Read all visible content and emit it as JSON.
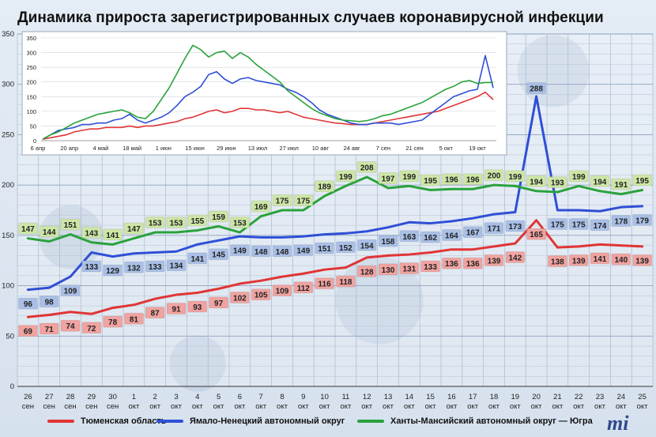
{
  "title": "Динамика прироста зарегистрированных случаев коронавирусной инфекции",
  "colors": {
    "tyumen": "#e03535",
    "yamal": "#2f4fd6",
    "hmao": "#2aa23c"
  },
  "chart_data": [
    {
      "type": "line",
      "categories": [
        "26 сен",
        "27 сен",
        "28 сен",
        "29 сен",
        "30 сен",
        "1 окт",
        "2 окт",
        "3 окт",
        "4 окт",
        "5 окт",
        "6 окт",
        "7 окт",
        "8 окт",
        "9 окт",
        "10 окт",
        "11 окт",
        "12 окт",
        "13 окт",
        "14 окт",
        "15 окт",
        "16 окт",
        "17 окт",
        "18 окт",
        "19 окт",
        "20 окт",
        "21 окт",
        "22 окт",
        "23 окт",
        "24 окт",
        "25 окт"
      ],
      "ylim": [
        0,
        350
      ],
      "yticks": [
        0,
        50,
        100,
        150,
        200,
        250,
        300,
        350
      ],
      "series": [
        {
          "name": "Тюменская область",
          "color": "#e03535",
          "values": [
            69,
            71,
            74,
            72,
            78,
            81,
            87,
            91,
            93,
            97,
            102,
            105,
            109,
            112,
            116,
            118,
            128,
            130,
            131,
            133,
            136,
            136,
            139,
            142,
            165,
            138,
            139,
            141,
            140,
            139
          ]
        },
        {
          "name": "Ямало-Ненецкий автономный округ",
          "color": "#2f4fd6",
          "values": [
            96,
            98,
            109,
            133,
            129,
            132,
            133,
            134,
            141,
            145,
            149,
            148,
            148,
            149,
            151,
            152,
            154,
            158,
            163,
            162,
            164,
            167,
            171,
            173,
            288,
            175,
            175,
            174,
            178,
            179
          ]
        },
        {
          "name": "Ханты-Мансийский автономный округ — Югра",
          "color": "#2aa23c",
          "values": [
            147,
            144,
            151,
            143,
            141,
            147,
            153,
            153,
            155,
            159,
            153,
            169,
            175,
            175,
            189,
            199,
            208,
            197,
            199,
            195,
            196,
            196,
            200,
            199,
            194,
            193,
            199,
            194,
            191,
            195
          ]
        }
      ]
    },
    {
      "type": "line",
      "x_ticks": [
        "6 апр",
        "20 апр",
        "4 май",
        "18 май",
        "1 июн",
        "15 июн",
        "29 июн",
        "13 июл",
        "27 июл",
        "10 авг",
        "24 авг",
        "7 сен",
        "21 сен",
        "5 окт",
        "19 окт"
      ],
      "ylim": [
        0,
        350
      ],
      "yticks": [
        0,
        50,
        100,
        150,
        200,
        250,
        300,
        350
      ],
      "series": [
        {
          "name": "Тюменская область",
          "color": "#e03535",
          "values": [
            5,
            10,
            15,
            20,
            30,
            35,
            40,
            40,
            45,
            45,
            45,
            50,
            45,
            50,
            50,
            55,
            60,
            65,
            75,
            80,
            90,
            100,
            105,
            95,
            100,
            110,
            110,
            105,
            105,
            100,
            95,
            100,
            90,
            80,
            75,
            70,
            65,
            60,
            58,
            55,
            55,
            55,
            60,
            65,
            70,
            75,
            80,
            85,
            90,
            95,
            100,
            110,
            120,
            130,
            140,
            150,
            165,
            140
          ]
        },
        {
          "name": "Ямало-Ненецкий автономный округ",
          "color": "#2f4fd6",
          "values": [
            5,
            20,
            35,
            40,
            45,
            55,
            55,
            60,
            60,
            70,
            75,
            90,
            70,
            60,
            70,
            80,
            95,
            120,
            150,
            165,
            185,
            225,
            235,
            210,
            195,
            210,
            215,
            205,
            200,
            195,
            190,
            175,
            165,
            150,
            130,
            105,
            90,
            80,
            70,
            60,
            55,
            55,
            60,
            60,
            60,
            55,
            60,
            65,
            70,
            90,
            110,
            130,
            150,
            160,
            170,
            175,
            290,
            180
          ]
        },
        {
          "name": "Ханты-Мансийский автономный округ — Югра",
          "color": "#2aa23c",
          "values": [
            5,
            20,
            30,
            45,
            60,
            70,
            80,
            90,
            95,
            100,
            105,
            95,
            80,
            75,
            100,
            140,
            180,
            230,
            280,
            325,
            310,
            285,
            300,
            305,
            280,
            300,
            285,
            260,
            240,
            220,
            200,
            170,
            150,
            130,
            110,
            95,
            85,
            75,
            70,
            68,
            65,
            68,
            75,
            85,
            90,
            100,
            110,
            120,
            130,
            145,
            160,
            175,
            185,
            200,
            205,
            195,
            198,
            198
          ]
        }
      ]
    }
  ],
  "legend": [
    {
      "label": "Тюменская область",
      "color": "#e03535"
    },
    {
      "label": "Ямало-Ненецкий автономный округ",
      "color": "#2f4fd6"
    },
    {
      "label": "Ханты-Мансийский автономный округ — Югра",
      "color": "#2aa23c"
    }
  ]
}
